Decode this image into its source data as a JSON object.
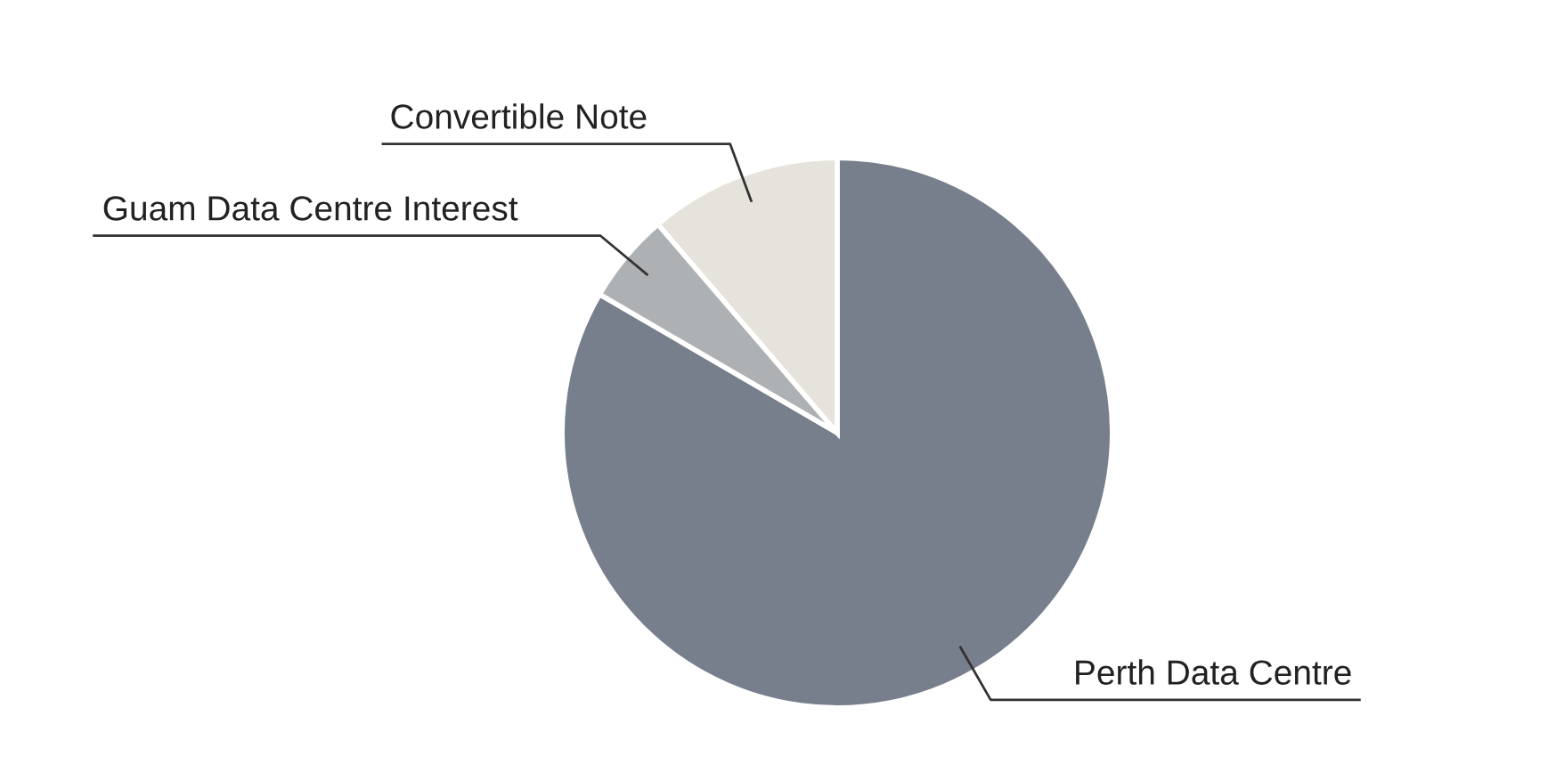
{
  "chart_data": {
    "type": "pie",
    "categories": [
      "Perth Data Centre",
      "Guam Data Centre Interest",
      "Convertible Note"
    ],
    "values": [
      83.4,
      5.3,
      11.3
    ],
    "colors": [
      "#787f8c",
      "#adb1b4",
      "#e6e3dc"
    ],
    "legend": false
  }
}
